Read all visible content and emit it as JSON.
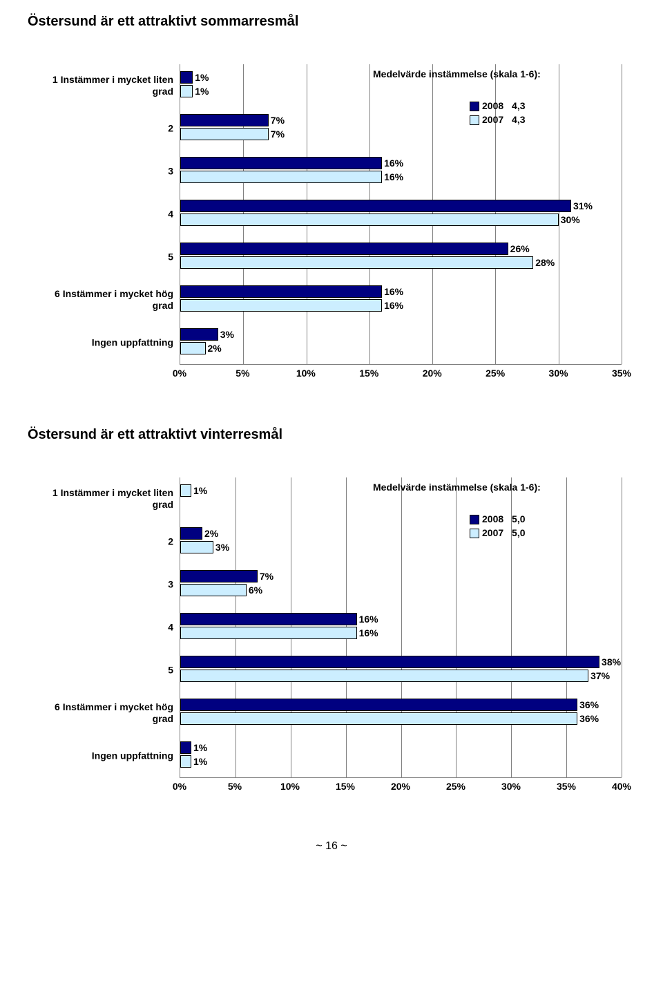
{
  "colors": {
    "series_2008": "#000080",
    "series_2007": "#cceeff",
    "grid": "#808080",
    "bar_border": "#000000",
    "text": "#000000"
  },
  "page_number": "~ 16 ~",
  "charts": [
    {
      "title": "Östersund är ett attraktivt sommarresmål",
      "mean_title": "Medelvärde instämmelse (skala 1-6):",
      "legend": [
        {
          "year": "2008",
          "mean": "4,3"
        },
        {
          "year": "2007",
          "mean": "4,3"
        }
      ],
      "x_max": 35,
      "x_ticks": [
        "0%",
        "5%",
        "10%",
        "15%",
        "20%",
        "25%",
        "30%",
        "35%"
      ],
      "categories": [
        {
          "label": "1 Instämmer i mycket liten grad",
          "v2008": 1,
          "v2007": 1
        },
        {
          "label": "2",
          "v2008": 7,
          "v2007": 7
        },
        {
          "label": "3",
          "v2008": 16,
          "v2007": 16
        },
        {
          "label": "4",
          "v2008": 31,
          "v2007": 30
        },
        {
          "label": "5",
          "v2008": 26,
          "v2007": 28
        },
        {
          "label": "6 Instämmer i mycket hög grad",
          "v2008": 16,
          "v2007": 16
        },
        {
          "label": "Ingen uppfattning",
          "v2008": 3,
          "v2007": 2
        }
      ]
    },
    {
      "title": "Östersund är ett attraktivt vinterresmål",
      "mean_title": "Medelvärde instämmelse (skala 1-6):",
      "legend": [
        {
          "year": "2008",
          "mean": "5,0"
        },
        {
          "year": "2007",
          "mean": "5,0"
        }
      ],
      "x_max": 40,
      "x_ticks": [
        "0%",
        "5%",
        "10%",
        "15%",
        "20%",
        "25%",
        "30%",
        "35%",
        "40%"
      ],
      "categories": [
        {
          "label": "1 Instämmer i mycket liten grad",
          "v2008": 0,
          "v2007": 1
        },
        {
          "label": "2",
          "v2008": 2,
          "v2007": 3
        },
        {
          "label": "3",
          "v2008": 7,
          "v2007": 6
        },
        {
          "label": "4",
          "v2008": 16,
          "v2007": 16
        },
        {
          "label": "5",
          "v2008": 38,
          "v2007": 37
        },
        {
          "label": "6 Instämmer i mycket hög grad",
          "v2008": 36,
          "v2007": 36
        },
        {
          "label": "Ingen uppfattning",
          "v2008": 1,
          "v2007": 1
        }
      ]
    }
  ]
}
